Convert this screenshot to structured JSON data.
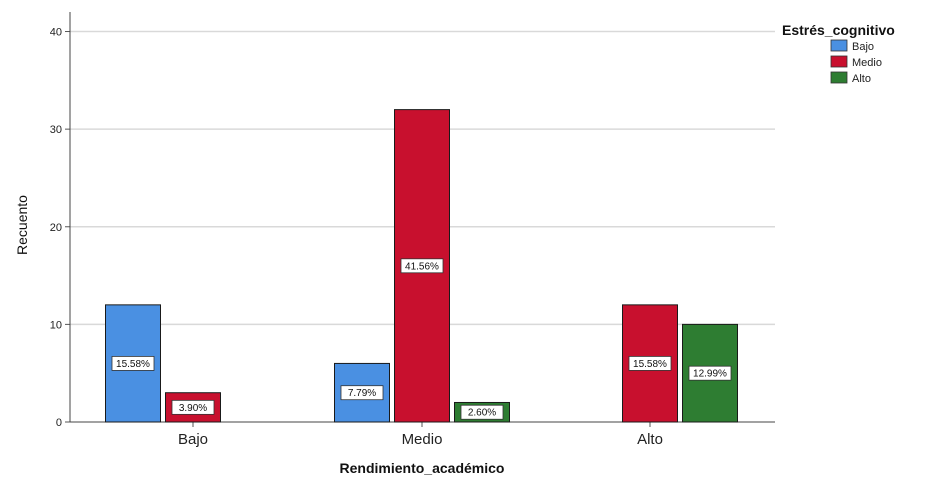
{
  "chart_data": {
    "type": "bar",
    "title": "",
    "xlabel": "Rendimiento_académico",
    "ylabel": "Recuento",
    "ylim": [
      0,
      42
    ],
    "yticks": [
      0,
      10,
      20,
      30,
      40
    ],
    "grid": true,
    "legend_position": "top-right",
    "legend_title": "Estrés_cognitivo",
    "categories": [
      "Bajo",
      "Medio",
      "Alto"
    ],
    "series": [
      {
        "name": "Bajo",
        "color": "#4a90e2",
        "values": [
          12,
          6,
          0
        ],
        "labels": [
          "15.58%",
          "7.79%",
          ""
        ]
      },
      {
        "name": "Medio",
        "color": "#c8102e",
        "values": [
          3,
          32,
          12
        ],
        "labels": [
          "3.90%",
          "41.56%",
          "15.58%"
        ]
      },
      {
        "name": "Alto",
        "color": "#2e7d32",
        "values": [
          0,
          2,
          10
        ],
        "labels": [
          "",
          "2.60%",
          "12.99%"
        ]
      }
    ]
  }
}
